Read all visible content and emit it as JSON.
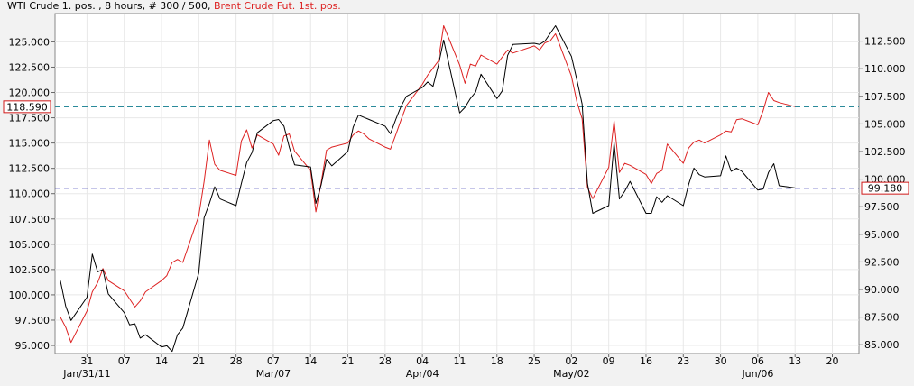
{
  "title": {
    "part1": "WTI Crude 1. pos. , 8 hours, # 300 / 500, ",
    "part2": "Brent Crude Fut. 1st. pos."
  },
  "colors": {
    "wti": "#000000",
    "brent": "#dd2222",
    "ref_wti": "#1a1aa8",
    "ref_brent": "#2a8a9a",
    "grid": "#e8e8e8",
    "plot_bg": "#ffffff",
    "page_bg": "#f2f2f2"
  },
  "chart_data": {
    "type": "line",
    "grid": true,
    "legend": "title",
    "x_axis": {
      "range": [
        "2011-01-25",
        "2011-06-25"
      ],
      "day_ticks": [
        "31",
        "07",
        "14",
        "21",
        "28",
        "07",
        "14",
        "21",
        "28",
        "04",
        "11",
        "18",
        "25",
        "02",
        "09",
        "16",
        "23",
        "30",
        "06",
        "13",
        "20"
      ],
      "day_tick_dates": [
        "2011-01-31",
        "2011-02-07",
        "2011-02-14",
        "2011-02-21",
        "2011-02-28",
        "2011-03-07",
        "2011-03-14",
        "2011-03-21",
        "2011-03-28",
        "2011-04-04",
        "2011-04-11",
        "2011-04-18",
        "2011-04-25",
        "2011-05-02",
        "2011-05-09",
        "2011-05-16",
        "2011-05-23",
        "2011-05-30",
        "2011-06-06",
        "2011-06-13",
        "2011-06-20"
      ],
      "month_labels": [
        {
          "label": "Jan/31/11",
          "date": "2011-01-31"
        },
        {
          "label": "Mar/07",
          "date": "2011-03-07"
        },
        {
          "label": "Apr/04",
          "date": "2011-04-04"
        },
        {
          "label": "May/02",
          "date": "2011-05-02"
        },
        {
          "label": "Jun/06",
          "date": "2011-06-06"
        }
      ]
    },
    "y_left": {
      "label": "Brent Crude Fut. 1st. pos.",
      "ylim": [
        94.2,
        127.8
      ],
      "ticks": [
        "95.000",
        "97.500",
        "100.000",
        "102.500",
        "105.000",
        "107.500",
        "110.000",
        "112.500",
        "115.000",
        "117.500",
        "120.000",
        "122.500",
        "125.000"
      ]
    },
    "y_right": {
      "label": "WTI Crude 1. pos.",
      "ylim": [
        84.2,
        115.0
      ],
      "ticks": [
        "85.000",
        "87.500",
        "90.000",
        "92.500",
        "95.000",
        "97.500",
        "100.000",
        "102.500",
        "105.000",
        "107.500",
        "110.000",
        "112.500"
      ]
    },
    "reference_lines": [
      {
        "name": "brent_last",
        "axis": "left",
        "value": 118.59,
        "label": "118.590"
      },
      {
        "name": "wti_last",
        "axis": "right",
        "value": 99.18,
        "label": "99.180"
      }
    ],
    "series": [
      {
        "name": "WTI Crude 1. pos.",
        "axis": "right",
        "x": [
          "2011-01-26",
          "2011-01-27",
          "2011-01-28",
          "2011-01-31",
          "2011-02-01",
          "2011-02-02",
          "2011-02-03",
          "2011-02-04",
          "2011-02-07",
          "2011-02-08",
          "2011-02-09",
          "2011-02-10",
          "2011-02-11",
          "2011-02-14",
          "2011-02-15",
          "2011-02-16",
          "2011-02-17",
          "2011-02-18",
          "2011-02-21",
          "2011-02-22",
          "2011-02-23",
          "2011-02-24",
          "2011-02-25",
          "2011-02-28",
          "2011-03-01",
          "2011-03-02",
          "2011-03-03",
          "2011-03-04",
          "2011-03-07",
          "2011-03-08",
          "2011-03-09",
          "2011-03-10",
          "2011-03-11",
          "2011-03-14",
          "2011-03-15",
          "2011-03-16",
          "2011-03-17",
          "2011-03-18",
          "2011-03-21",
          "2011-03-22",
          "2011-03-23",
          "2011-03-24",
          "2011-03-25",
          "2011-03-28",
          "2011-03-29",
          "2011-03-30",
          "2011-03-31",
          "2011-04-01",
          "2011-04-04",
          "2011-04-05",
          "2011-04-06",
          "2011-04-07",
          "2011-04-08",
          "2011-04-11",
          "2011-04-12",
          "2011-04-13",
          "2011-04-14",
          "2011-04-15",
          "2011-04-18",
          "2011-04-19",
          "2011-04-20",
          "2011-04-21",
          "2011-04-25",
          "2011-04-26",
          "2011-04-27",
          "2011-04-28",
          "2011-04-29",
          "2011-05-02",
          "2011-05-03",
          "2011-05-04",
          "2011-05-05",
          "2011-05-06",
          "2011-05-09",
          "2011-05-10",
          "2011-05-11",
          "2011-05-12",
          "2011-05-13",
          "2011-05-16",
          "2011-05-17",
          "2011-05-18",
          "2011-05-19",
          "2011-05-20",
          "2011-05-23",
          "2011-05-24",
          "2011-05-25",
          "2011-05-26",
          "2011-05-27",
          "2011-05-30",
          "2011-05-31",
          "2011-06-01",
          "2011-06-02",
          "2011-06-03",
          "2011-06-06",
          "2011-06-07",
          "2011-06-08",
          "2011-06-09",
          "2011-06-10",
          "2011-06-13"
        ],
        "values": [
          90.8,
          88.5,
          87.2,
          89.3,
          93.2,
          91.6,
          91.8,
          89.6,
          87.9,
          86.8,
          86.9,
          85.6,
          85.9,
          84.8,
          84.9,
          84.4,
          85.9,
          86.5,
          91.5,
          96.5,
          97.8,
          99.3,
          98.2,
          97.6,
          99.6,
          101.5,
          102.4,
          104.2,
          105.3,
          105.4,
          104.8,
          102.9,
          101.3,
          101.1,
          97.8,
          99.5,
          101.8,
          101.2,
          102.5,
          104.7,
          105.8,
          105.6,
          105.4,
          104.8,
          104.1,
          105.4,
          106.6,
          107.5,
          108.3,
          108.8,
          108.4,
          110.3,
          112.6,
          106.0,
          106.5,
          107.3,
          107.9,
          109.5,
          107.3,
          108.0,
          111.2,
          112.2,
          112.3,
          112.2,
          112.5,
          113.2,
          113.9,
          111.1,
          109.0,
          106.8,
          99.6,
          96.9,
          97.6,
          103.3,
          98.2,
          98.9,
          99.8,
          96.9,
          96.9,
          98.4,
          97.9,
          98.5,
          97.6,
          99.5,
          101.0,
          100.4,
          100.2,
          100.3,
          102.1,
          100.7,
          101.0,
          100.7,
          99.0,
          99.1,
          100.6,
          101.4,
          99.4,
          99.2
        ]
      },
      {
        "name": "Brent Crude Fut. 1st. pos.",
        "axis": "left",
        "x": [
          "2011-01-26",
          "2011-01-27",
          "2011-01-28",
          "2011-01-31",
          "2011-02-01",
          "2011-02-02",
          "2011-02-03",
          "2011-02-04",
          "2011-02-07",
          "2011-02-08",
          "2011-02-09",
          "2011-02-10",
          "2011-02-11",
          "2011-02-14",
          "2011-02-15",
          "2011-02-16",
          "2011-02-17",
          "2011-02-18",
          "2011-02-21",
          "2011-02-22",
          "2011-02-23",
          "2011-02-24",
          "2011-02-25",
          "2011-02-28",
          "2011-03-01",
          "2011-03-02",
          "2011-03-03",
          "2011-03-04",
          "2011-03-07",
          "2011-03-08",
          "2011-03-09",
          "2011-03-10",
          "2011-03-11",
          "2011-03-14",
          "2011-03-15",
          "2011-03-16",
          "2011-03-17",
          "2011-03-18",
          "2011-03-21",
          "2011-03-22",
          "2011-03-23",
          "2011-03-24",
          "2011-03-25",
          "2011-03-28",
          "2011-03-29",
          "2011-03-30",
          "2011-03-31",
          "2011-04-01",
          "2011-04-04",
          "2011-04-05",
          "2011-04-06",
          "2011-04-07",
          "2011-04-08",
          "2011-04-11",
          "2011-04-12",
          "2011-04-13",
          "2011-04-14",
          "2011-04-15",
          "2011-04-18",
          "2011-04-19",
          "2011-04-20",
          "2011-04-21",
          "2011-04-25",
          "2011-04-26",
          "2011-04-27",
          "2011-04-28",
          "2011-04-29",
          "2011-05-02",
          "2011-05-03",
          "2011-05-04",
          "2011-05-05",
          "2011-05-06",
          "2011-05-09",
          "2011-05-10",
          "2011-05-11",
          "2011-05-12",
          "2011-05-13",
          "2011-05-16",
          "2011-05-17",
          "2011-05-18",
          "2011-05-19",
          "2011-05-20",
          "2011-05-23",
          "2011-05-24",
          "2011-05-25",
          "2011-05-26",
          "2011-05-27",
          "2011-05-30",
          "2011-05-31",
          "2011-06-01",
          "2011-06-02",
          "2011-06-03",
          "2011-06-06",
          "2011-06-07",
          "2011-06-08",
          "2011-06-09",
          "2011-06-10",
          "2011-06-13"
        ],
        "values": [
          97.8,
          96.8,
          95.3,
          98.4,
          100.3,
          101.2,
          102.6,
          101.4,
          100.4,
          99.6,
          98.8,
          99.4,
          100.3,
          101.4,
          101.9,
          103.2,
          103.5,
          103.2,
          107.8,
          111.2,
          115.3,
          112.9,
          112.3,
          111.8,
          115.2,
          116.3,
          114.5,
          115.8,
          114.9,
          113.8,
          115.7,
          115.9,
          114.2,
          112.3,
          108.2,
          111.1,
          114.3,
          114.6,
          115.0,
          115.8,
          116.2,
          115.9,
          115.4,
          114.6,
          114.4,
          115.8,
          117.3,
          118.7,
          120.8,
          121.7,
          122.4,
          123.1,
          126.6,
          122.7,
          120.9,
          122.8,
          122.6,
          123.7,
          122.8,
          123.5,
          124.2,
          123.9,
          124.6,
          124.2,
          124.9,
          125.1,
          125.8,
          121.6,
          119.1,
          117.4,
          110.6,
          109.5,
          112.6,
          117.2,
          112.1,
          113.0,
          112.8,
          111.9,
          111.0,
          112.0,
          112.3,
          114.9,
          113.0,
          114.5,
          115.1,
          115.3,
          115.0,
          115.8,
          116.2,
          116.1,
          117.3,
          117.4,
          116.8,
          118.2,
          120.0,
          119.2,
          119.0,
          118.6
        ]
      }
    ]
  }
}
